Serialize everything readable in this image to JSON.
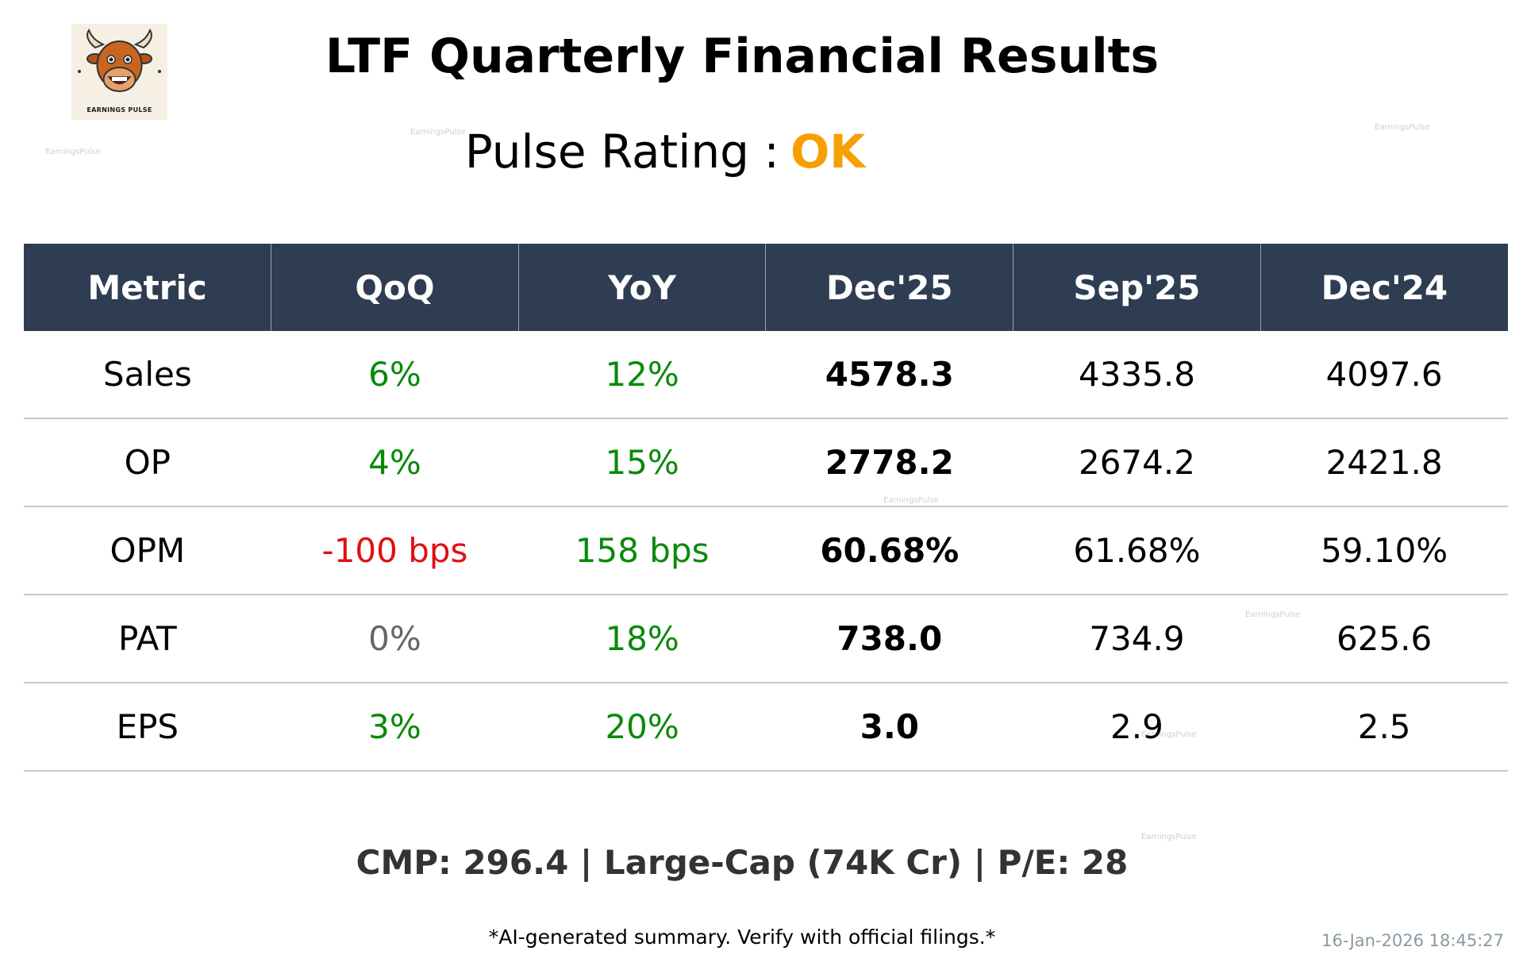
{
  "logo": {
    "text": "EARNINGS PULSE"
  },
  "title": "LTF Quarterly Financial Results",
  "rating": {
    "label": "Pulse Rating :",
    "value": "OK",
    "value_color": "#f5a000"
  },
  "watermark_text": "EarningsPulse",
  "table": {
    "headers": [
      "Metric",
      "QoQ",
      "YoY",
      "Dec'25",
      "Sep'25",
      "Dec'24"
    ],
    "header_bg": "#2e3d51",
    "rows": [
      {
        "metric": "Sales",
        "qoq": "6%",
        "qoq_tone": "positive",
        "yoy": "12%",
        "yoy_tone": "positive",
        "dec25": "4578.3",
        "sep25": "4335.8",
        "dec24": "4097.6"
      },
      {
        "metric": "OP",
        "qoq": "4%",
        "qoq_tone": "positive",
        "yoy": "15%",
        "yoy_tone": "positive",
        "dec25": "2778.2",
        "sep25": "2674.2",
        "dec24": "2421.8"
      },
      {
        "metric": "OPM",
        "qoq": "-100 bps",
        "qoq_tone": "negative",
        "yoy": "158 bps",
        "yoy_tone": "positive",
        "dec25": "60.68%",
        "sep25": "61.68%",
        "dec24": "59.10%"
      },
      {
        "metric": "PAT",
        "qoq": "0%",
        "qoq_tone": "neutral",
        "yoy": "18%",
        "yoy_tone": "positive",
        "dec25": "738.0",
        "sep25": "734.9",
        "dec24": "625.6"
      },
      {
        "metric": "EPS",
        "qoq": "3%",
        "qoq_tone": "positive",
        "yoy": "20%",
        "yoy_tone": "positive",
        "dec25": "3.0",
        "sep25": "2.9",
        "dec24": "2.5"
      }
    ]
  },
  "colors": {
    "positive": "#0a8a0a",
    "negative": "#e01010",
    "neutral": "#666666"
  },
  "summary": "CMP: 296.4 | Large-Cap (74K Cr) | P/E: 28",
  "disclaimer": "*AI-generated summary. Verify with official filings.*",
  "timestamp": "16-Jan-2026 18:45:27"
}
